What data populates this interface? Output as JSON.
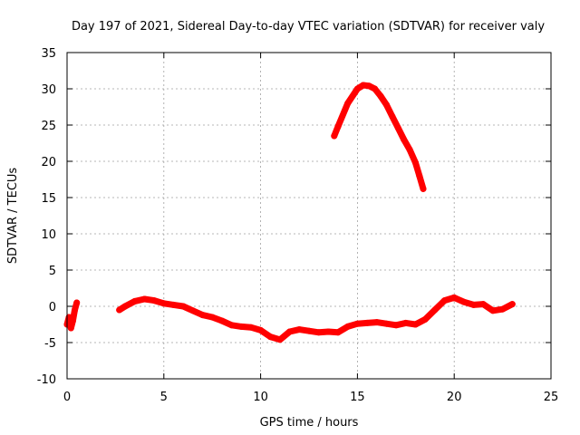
{
  "chart_data": {
    "type": "scatter",
    "title": "Day 197 of 2021, Sidereal Day-to-day VTEC variation (SDTVAR) for receiver valy",
    "xlabel": "GPS time / hours",
    "ylabel": "SDTVAR / TECUs",
    "xlim": [
      0,
      25
    ],
    "ylim": [
      -10,
      35
    ],
    "xticks": [
      0,
      5,
      10,
      15,
      20,
      25
    ],
    "yticks": [
      -10,
      -5,
      0,
      5,
      10,
      15,
      20,
      25,
      30,
      35
    ],
    "grid": true,
    "series": [
      {
        "name": "SDTVAR arc 1",
        "color": "#ff0000",
        "x": [
          0.0,
          0.1,
          0.2,
          0.3,
          0.4,
          0.5
        ],
        "y": [
          -2.5,
          -1.5,
          -3.0,
          -2.0,
          -0.5,
          0.5
        ]
      },
      {
        "name": "SDTVAR arc 2",
        "color": "#ff0000",
        "x": [
          2.7,
          3.0,
          3.5,
          4.0,
          4.5,
          5.0,
          5.5,
          6.0,
          6.5,
          7.0,
          7.5,
          8.0,
          8.5,
          9.0,
          9.5,
          10.0,
          10.5,
          11.0,
          11.5,
          12.0,
          12.5,
          13.0,
          13.5,
          14.0,
          14.5,
          15.0,
          15.5,
          16.0,
          16.5,
          17.0,
          17.5,
          18.0,
          18.5,
          19.0,
          19.5,
          20.0,
          20.5,
          21.0,
          21.5,
          22.0,
          22.5,
          23.0
        ],
        "y": [
          -0.5,
          0.0,
          0.7,
          1.0,
          0.8,
          0.4,
          0.2,
          0.0,
          -0.6,
          -1.2,
          -1.5,
          -2.0,
          -2.6,
          -2.8,
          -2.9,
          -3.3,
          -4.2,
          -4.6,
          -3.5,
          -3.2,
          -3.4,
          -3.6,
          -3.5,
          -3.6,
          -2.8,
          -2.4,
          -2.3,
          -2.2,
          -2.4,
          -2.6,
          -2.3,
          -2.5,
          -1.8,
          -0.5,
          0.8,
          1.2,
          0.6,
          0.2,
          0.3,
          -0.6,
          -0.4,
          0.3
        ]
      },
      {
        "name": "SDTVAR arc 3",
        "color": "#ff0000",
        "x": [
          13.8,
          14.0,
          14.5,
          15.0,
          15.3,
          15.6,
          15.9,
          16.2,
          16.5,
          16.8,
          17.1,
          17.4,
          17.7,
          18.0,
          18.2,
          18.4
        ],
        "y": [
          23.5,
          24.8,
          28.0,
          30.0,
          30.5,
          30.4,
          30.0,
          29.0,
          27.8,
          26.2,
          24.6,
          23.0,
          21.6,
          19.8,
          18.0,
          16.2
        ]
      }
    ]
  }
}
